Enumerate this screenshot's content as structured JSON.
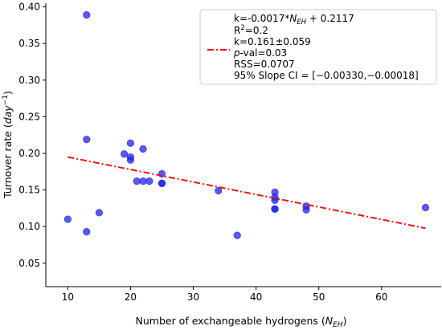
{
  "chart_data": {
    "type": "scatter",
    "xlabel": {
      "main": "Number of exchangeable hydrogens (",
      "italic": "N",
      "sub": "EH",
      "close": ")"
    },
    "ylabel": {
      "main": "Turnover rate (",
      "italic": "day",
      "sup": "−1",
      "close": ")"
    },
    "xlim": [
      6.5,
      69.5
    ],
    "ylim": [
      0.018,
      0.405
    ],
    "x_ticks": [
      10,
      20,
      30,
      40,
      50,
      60
    ],
    "y_ticks": [
      0.05,
      0.1,
      0.15,
      0.2,
      0.25,
      0.3,
      0.35,
      0.4
    ],
    "x_tick_labels": [
      "10",
      "20",
      "30",
      "40",
      "50",
      "60"
    ],
    "y_tick_labels": [
      "0.05",
      "0.10",
      "0.15",
      "0.20",
      "0.25",
      "0.30",
      "0.35",
      "0.40"
    ],
    "grid": false,
    "colors": {
      "points": "#2222ee",
      "fit_line": "#ee1111"
    },
    "points": [
      {
        "x": 10,
        "y": 0.11
      },
      {
        "x": 13,
        "y": 0.389
      },
      {
        "x": 13,
        "y": 0.219
      },
      {
        "x": 13,
        "y": 0.093
      },
      {
        "x": 15,
        "y": 0.119
      },
      {
        "x": 19,
        "y": 0.199
      },
      {
        "x": 20,
        "y": 0.214
      },
      {
        "x": 20,
        "y": 0.195
      },
      {
        "x": 20,
        "y": 0.191
      },
      {
        "x": 21,
        "y": 0.162
      },
      {
        "x": 22,
        "y": 0.206
      },
      {
        "x": 22,
        "y": 0.162
      },
      {
        "x": 23,
        "y": 0.162
      },
      {
        "x": 25,
        "y": 0.172
      },
      {
        "x": 25,
        "y": 0.159
      },
      {
        "x": 25,
        "y": 0.159
      },
      {
        "x": 34,
        "y": 0.149
      },
      {
        "x": 37,
        "y": 0.088
      },
      {
        "x": 43,
        "y": 0.147
      },
      {
        "x": 43,
        "y": 0.14
      },
      {
        "x": 43,
        "y": 0.136
      },
      {
        "x": 43,
        "y": 0.124
      },
      {
        "x": 43,
        "y": 0.124
      },
      {
        "x": 48,
        "y": 0.128
      },
      {
        "x": 48,
        "y": 0.123
      },
      {
        "x": 67,
        "y": 0.126
      }
    ],
    "fit_line": {
      "x": [
        10,
        67
      ],
      "y": [
        0.195,
        0.0978
      ]
    },
    "legend": {
      "placement": "top-right",
      "eq_prefix": "k=-0.0017*",
      "eq_italic": "N",
      "eq_sub": "EH",
      "eq_suffix": " + 0.2117",
      "r2_main": "R",
      "r2_sup": "2",
      "r2_value": "=0.2",
      "k_mean": "k=0.161±0.059",
      "pval_italic": "p",
      "pval_rest": "-val=0.03",
      "rss": "RSS=0.0707",
      "slope_ci": "95% Slope CI = [−0.00330,−0.00018]"
    }
  }
}
